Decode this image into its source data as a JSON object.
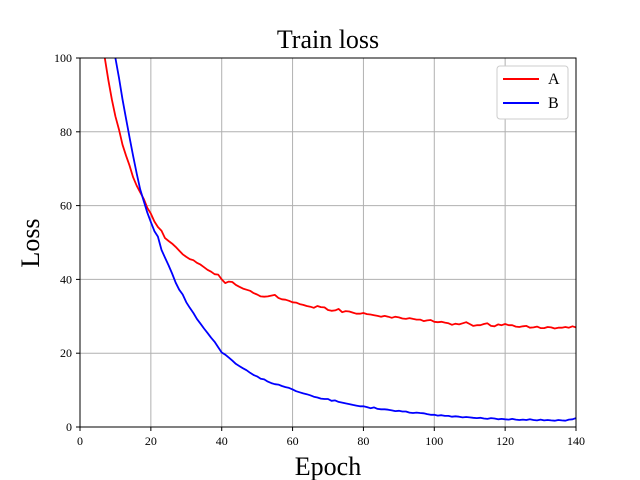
{
  "chart_data": {
    "type": "line",
    "title": "Train loss",
    "xlabel": "Epoch",
    "ylabel": "Loss",
    "xlim": [
      0,
      140
    ],
    "ylim": [
      0,
      100
    ],
    "xticks": [
      0,
      20,
      40,
      60,
      80,
      100,
      120,
      140
    ],
    "yticks": [
      0,
      20,
      40,
      60,
      80,
      100
    ],
    "grid": true,
    "legend_position": "top-right",
    "series": [
      {
        "name": "A",
        "color": "#ff0000",
        "x": [
          7,
          8,
          9,
          10,
          11,
          12,
          13,
          14,
          15,
          16,
          17,
          18,
          19,
          20,
          21,
          22,
          23,
          24,
          25,
          26,
          27,
          28,
          29,
          30,
          31,
          32,
          33,
          34,
          35,
          36,
          37,
          38,
          39,
          40,
          41,
          42,
          43,
          44,
          45,
          46,
          47,
          48,
          49,
          50,
          51,
          52,
          53,
          54,
          55,
          56,
          57,
          58,
          59,
          60,
          61,
          62,
          63,
          64,
          65,
          66,
          67,
          68,
          69,
          70,
          71,
          72,
          73,
          74,
          75,
          76,
          77,
          78,
          79,
          80,
          81,
          82,
          83,
          84,
          85,
          86,
          87,
          88,
          89,
          90,
          91,
          92,
          93,
          94,
          95,
          96,
          97,
          98,
          99,
          100,
          101,
          102,
          103,
          104,
          105,
          106,
          107,
          108,
          109,
          110,
          111,
          112,
          113,
          114,
          115,
          116,
          117,
          118,
          119,
          120,
          121,
          122,
          123,
          124,
          125,
          126,
          127,
          128,
          129,
          130,
          131,
          132,
          133,
          134,
          135,
          136,
          137,
          138,
          139,
          140
        ],
        "values": [
          100,
          94.1,
          88.7,
          84.2,
          80.6,
          76.5,
          73.5,
          70.8,
          67.7,
          65.4,
          63.6,
          61.8,
          59.4,
          57.8,
          55.7,
          54.2,
          53.2,
          51.2,
          50.4,
          49.7,
          48.8,
          47.8,
          46.8,
          46.1,
          45.5,
          45.2,
          44.5,
          44,
          43.3,
          42.6,
          42.1,
          41.4,
          41.3,
          40,
          39,
          39.4,
          39.3,
          38.5,
          38,
          37.5,
          37.2,
          36.9,
          36.3,
          35.9,
          35.4,
          35.3,
          35.4,
          35.6,
          35.8,
          35,
          34.6,
          34.5,
          34.2,
          33.8,
          33.7,
          33.3,
          33.1,
          32.8,
          32.6,
          32.3,
          32.8,
          32.5,
          32.4,
          31.7,
          31.5,
          31.6,
          32,
          31.1,
          31.4,
          31.3,
          31,
          30.7,
          30.7,
          30.9,
          30.6,
          30.5,
          30.3,
          30.1,
          29.9,
          30.1,
          29.9,
          29.6,
          29.9,
          29.7,
          29.4,
          29.3,
          29.5,
          29.3,
          29.1,
          29.1,
          28.7,
          28.9,
          29,
          28.5,
          28.4,
          28.5,
          28.3,
          28.1,
          27.7,
          28,
          27.8,
          28.1,
          28.4,
          27.9,
          27.4,
          27.6,
          27.6,
          27.9,
          28.1,
          27.4,
          27.3,
          27.8,
          27.6,
          27.9,
          27.6,
          27.6,
          27.2,
          27.1,
          27.3,
          27.4,
          26.9,
          27,
          27.2,
          26.8,
          26.8,
          27.1,
          27,
          26.7,
          26.9,
          26.9,
          27.1,
          26.9,
          27.3,
          27
        ]
      },
      {
        "name": "B",
        "color": "#0000ff",
        "x": [
          10,
          11,
          12,
          13,
          14,
          15,
          16,
          17,
          18,
          19,
          20,
          21,
          22,
          23,
          24,
          25,
          26,
          27,
          28,
          29,
          30,
          31,
          32,
          33,
          34,
          35,
          36,
          37,
          38,
          39,
          40,
          41,
          42,
          43,
          44,
          45,
          46,
          47,
          48,
          49,
          50,
          51,
          52,
          53,
          54,
          55,
          56,
          57,
          58,
          59,
          60,
          61,
          62,
          63,
          64,
          65,
          66,
          67,
          68,
          69,
          70,
          71,
          72,
          73,
          74,
          75,
          76,
          77,
          78,
          79,
          80,
          81,
          82,
          83,
          84,
          85,
          86,
          87,
          88,
          89,
          90,
          91,
          92,
          93,
          94,
          95,
          96,
          97,
          98,
          99,
          100,
          101,
          102,
          103,
          104,
          105,
          106,
          107,
          108,
          109,
          110,
          111,
          112,
          113,
          114,
          115,
          116,
          117,
          118,
          119,
          120,
          121,
          122,
          123,
          124,
          125,
          126,
          127,
          128,
          129,
          130,
          131,
          132,
          133,
          134,
          135,
          136,
          137,
          138,
          139,
          140
        ],
        "values": [
          100,
          94.6,
          88.8,
          83.5,
          78.4,
          73.5,
          68.7,
          64.4,
          61.2,
          58.1,
          55.5,
          53.1,
          51.6,
          48,
          45.9,
          43.8,
          41.6,
          39.1,
          37.2,
          35.9,
          33.8,
          32.3,
          30.9,
          29.3,
          28,
          26.7,
          25.5,
          24.2,
          23.1,
          21.6,
          20.2,
          19.6,
          18.8,
          18,
          17.1,
          16.5,
          15.9,
          15.4,
          14.7,
          14.1,
          13.7,
          13.1,
          12.9,
          12.3,
          11.9,
          11.6,
          11.5,
          11.1,
          10.8,
          10.6,
          10.2,
          9.7,
          9.4,
          9.1,
          8.9,
          8.6,
          8.2,
          8.0,
          7.7,
          7.6,
          7.6,
          7.1,
          7.2,
          6.8,
          6.6,
          6.4,
          6.2,
          6.0,
          5.8,
          5.6,
          5.6,
          5.4,
          5.1,
          5.3,
          4.9,
          4.8,
          4.8,
          4.7,
          4.5,
          4.3,
          4.4,
          4.2,
          4.2,
          3.9,
          3.8,
          3.9,
          3.8,
          3.7,
          3.5,
          3.3,
          3.3,
          3.1,
          3.2,
          3.0,
          3.0,
          2.8,
          2.9,
          2.8,
          2.6,
          2.7,
          2.6,
          2.5,
          2.4,
          2.5,
          2.3,
          2.2,
          2.4,
          2.3,
          2.1,
          2.2,
          2.1,
          2.0,
          2.2,
          2.0,
          1.9,
          2.0,
          1.9,
          2.1,
          1.9,
          1.8,
          2.0,
          1.8,
          1.9,
          1.8,
          1.7,
          1.9,
          1.8,
          1.7,
          2.0,
          2.1,
          2.4
        ]
      }
    ]
  }
}
